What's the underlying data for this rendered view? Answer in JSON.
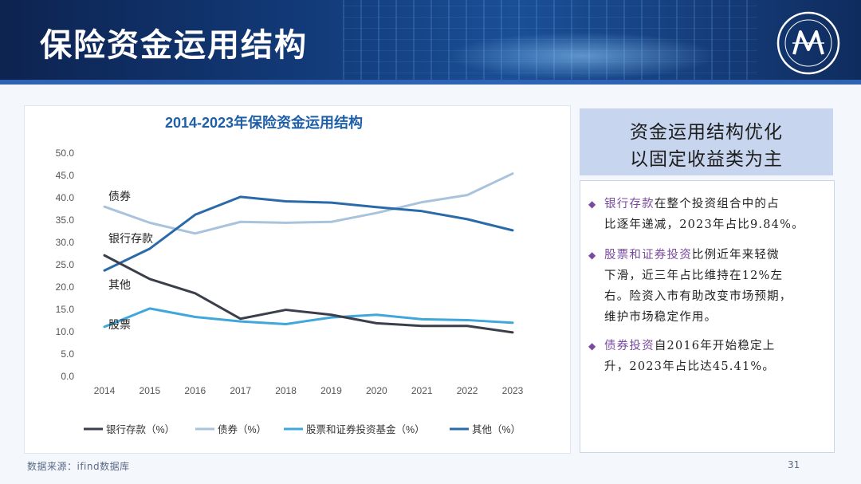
{
  "page": {
    "title": "保险资金运用结构",
    "source": "数据来源：ifind数据库",
    "page_number": "31"
  },
  "side_panel": {
    "heading_line1": "资金运用结构优化",
    "heading_line2": "以固定收益类为主",
    "bullets": [
      {
        "lines": [
          [
            {
              "text": "银行存款",
              "hl": true
            },
            {
              "text": "在整个投资组合中的占",
              "hl": false
            }
          ],
          [
            {
              "text": "比逐年递减，2023年占比9.84%。",
              "hl": false
            }
          ]
        ]
      },
      {
        "lines": [
          [
            {
              "text": "股票和证券投资",
              "hl": true
            },
            {
              "text": "比例近年来轻微",
              "hl": false
            }
          ],
          [
            {
              "text": "下滑，近三年占比维持在12%左",
              "hl": false
            }
          ],
          [
            {
              "text": "右。险资入市有助改变市场预期，",
              "hl": false
            }
          ],
          [
            {
              "text": "维护市场稳定作用。",
              "hl": false
            }
          ]
        ]
      },
      {
        "lines": [
          [
            {
              "text": "债券投资",
              "hl": true
            },
            {
              "text": "自2016年开始稳定上",
              "hl": false
            }
          ],
          [
            {
              "text": "升，2023年占比达45.41%。",
              "hl": false
            }
          ]
        ]
      }
    ]
  },
  "colors": {
    "bank": "#3b3f4c",
    "bond": "#a9c3dd",
    "stock": "#3fa7dc",
    "other": "#2a6aa8",
    "title": "#1f5fa8",
    "accent": "#7a4a9e"
  },
  "chart_data": {
    "type": "line",
    "title": "2014-2023年保险资金运用结构",
    "x": [
      "2014",
      "2015",
      "2016",
      "2017",
      "2018",
      "2019",
      "2020",
      "2021",
      "2022",
      "2023"
    ],
    "ylim": [
      0,
      50
    ],
    "yticks": [
      "0.0",
      "5.0",
      "10.0",
      "15.0",
      "20.0",
      "25.0",
      "30.0",
      "35.0",
      "40.0",
      "45.0",
      "50.0"
    ],
    "grid": false,
    "legend_position": "bottom",
    "series": [
      {
        "name": "银行存款（%）",
        "label": "银行存款",
        "key": "bank",
        "values": [
          27.1,
          21.8,
          18.6,
          12.9,
          14.9,
          13.8,
          11.9,
          11.3,
          11.3,
          9.84
        ]
      },
      {
        "name": "债券（%）",
        "label": "债券",
        "key": "bond",
        "values": [
          38.0,
          34.4,
          32.0,
          34.6,
          34.4,
          34.6,
          36.6,
          39.0,
          40.6,
          45.41
        ]
      },
      {
        "name": "股票和证券投资基金（%）",
        "label": "股票",
        "key": "stock",
        "values": [
          11.1,
          15.2,
          13.3,
          12.3,
          11.7,
          13.2,
          13.8,
          12.8,
          12.6,
          12.0
        ]
      },
      {
        "name": "其他（%）",
        "label": "其他",
        "key": "other",
        "values": [
          23.7,
          28.6,
          36.2,
          40.2,
          39.2,
          38.9,
          37.9,
          37.0,
          35.2,
          32.7
        ]
      }
    ]
  }
}
